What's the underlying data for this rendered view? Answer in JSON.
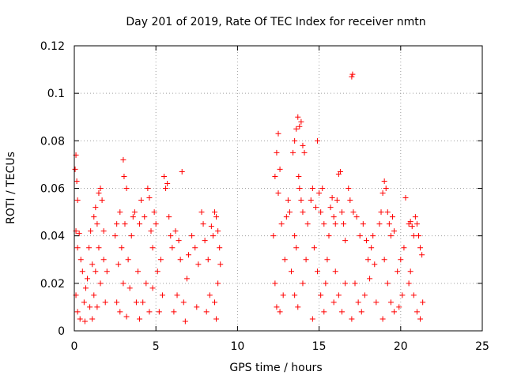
{
  "chart_data": {
    "type": "scatter",
    "title": "Day 201 of 2019, Rate Of TEC Index for receiver nmtn",
    "xlabel": "GPS time / hours",
    "ylabel": "ROTI / TECUs",
    "xlim": [
      0,
      25
    ],
    "ylim": [
      0,
      0.12
    ],
    "x_ticks": [
      0,
      5,
      10,
      15,
      20,
      25
    ],
    "x_tick_labels": [
      "0",
      "5",
      "10",
      "15",
      "20",
      "25"
    ],
    "y_ticks": [
      0,
      0.02,
      0.04,
      0.06,
      0.08,
      0.1,
      0.12
    ],
    "y_tick_labels": [
      "0",
      "0.02",
      "0.04",
      "0.06",
      "0.08",
      "0.1",
      "0.12"
    ],
    "grid": true,
    "marker": "plus",
    "color": "#ff0000",
    "series": [
      {
        "points": [
          [
            0.05,
            0.068
          ],
          [
            0.1,
            0.074
          ],
          [
            0.15,
            0.063
          ],
          [
            0.2,
            0.055
          ],
          [
            0.1,
            0.042
          ],
          [
            0.3,
            0.041
          ],
          [
            0.2,
            0.035
          ],
          [
            0.4,
            0.03
          ],
          [
            0.5,
            0.025
          ],
          [
            0.1,
            0.015
          ],
          [
            0.2,
            0.008
          ],
          [
            0.35,
            0.005
          ],
          [
            0.6,
            0.012
          ],
          [
            0.7,
            0.018
          ],
          [
            0.8,
            0.022
          ],
          [
            0.9,
            0.035
          ],
          [
            1.0,
            0.042
          ],
          [
            1.1,
            0.028
          ],
          [
            0.95,
            0.01
          ],
          [
            0.65,
            0.004
          ],
          [
            1.2,
            0.048
          ],
          [
            1.3,
            0.052
          ],
          [
            1.4,
            0.045
          ],
          [
            1.5,
            0.058
          ],
          [
            1.6,
            0.06
          ],
          [
            1.7,
            0.055
          ],
          [
            1.8,
            0.042
          ],
          [
            1.5,
            0.035
          ],
          [
            1.3,
            0.025
          ],
          [
            1.2,
            0.015
          ],
          [
            1.4,
            0.01
          ],
          [
            1.6,
            0.02
          ],
          [
            1.8,
            0.03
          ],
          [
            2.0,
            0.025
          ],
          [
            1.9,
            0.012
          ],
          [
            1.1,
            0.005
          ],
          [
            2.5,
            0.04
          ],
          [
            2.6,
            0.045
          ],
          [
            2.8,
            0.05
          ],
          [
            3.0,
            0.072
          ],
          [
            3.05,
            0.065
          ],
          [
            3.2,
            0.06
          ],
          [
            3.1,
            0.045
          ],
          [
            2.9,
            0.035
          ],
          [
            2.7,
            0.028
          ],
          [
            2.6,
            0.012
          ],
          [
            2.8,
            0.008
          ],
          [
            3.0,
            0.02
          ],
          [
            3.3,
            0.03
          ],
          [
            3.5,
            0.04
          ],
          [
            3.6,
            0.048
          ],
          [
            3.7,
            0.05
          ],
          [
            3.4,
            0.018
          ],
          [
            3.2,
            0.006
          ],
          [
            3.8,
            0.012
          ],
          [
            3.9,
            0.025
          ],
          [
            4.0,
            0.045
          ],
          [
            4.1,
            0.055
          ],
          [
            4.3,
            0.048
          ],
          [
            4.5,
            0.06
          ],
          [
            4.6,
            0.056
          ],
          [
            4.7,
            0.042
          ],
          [
            4.8,
            0.035
          ],
          [
            4.9,
            0.05
          ],
          [
            5.0,
            0.045
          ],
          [
            4.4,
            0.02
          ],
          [
            4.2,
            0.012
          ],
          [
            4.6,
            0.008
          ],
          [
            4.8,
            0.018
          ],
          [
            5.1,
            0.025
          ],
          [
            5.3,
            0.03
          ],
          [
            5.2,
            0.008
          ],
          [
            4.0,
            0.005
          ],
          [
            5.4,
            0.015
          ],
          [
            5.5,
            0.065
          ],
          [
            5.6,
            0.06
          ],
          [
            5.7,
            0.062
          ],
          [
            5.8,
            0.048
          ],
          [
            5.9,
            0.04
          ],
          [
            6.0,
            0.035
          ],
          [
            6.2,
            0.042
          ],
          [
            6.4,
            0.038
          ],
          [
            6.6,
            0.067
          ],
          [
            6.5,
            0.03
          ],
          [
            6.3,
            0.015
          ],
          [
            6.1,
            0.008
          ],
          [
            6.7,
            0.012
          ],
          [
            6.9,
            0.022
          ],
          [
            7.0,
            0.032
          ],
          [
            7.2,
            0.04
          ],
          [
            7.4,
            0.035
          ],
          [
            7.6,
            0.028
          ],
          [
            7.5,
            0.01
          ],
          [
            6.8,
            0.004
          ],
          [
            7.8,
            0.05
          ],
          [
            7.9,
            0.045
          ],
          [
            8.0,
            0.038
          ],
          [
            8.2,
            0.03
          ],
          [
            8.4,
            0.044
          ],
          [
            8.5,
            0.04
          ],
          [
            8.6,
            0.05
          ],
          [
            8.7,
            0.048
          ],
          [
            8.8,
            0.042
          ],
          [
            8.9,
            0.035
          ],
          [
            8.3,
            0.015
          ],
          [
            8.1,
            0.008
          ],
          [
            8.6,
            0.012
          ],
          [
            8.8,
            0.02
          ],
          [
            8.95,
            0.028
          ],
          [
            8.7,
            0.005
          ],
          [
            12.2,
            0.04
          ],
          [
            12.3,
            0.065
          ],
          [
            12.4,
            0.075
          ],
          [
            12.5,
            0.083
          ],
          [
            12.6,
            0.068
          ],
          [
            12.5,
            0.058
          ],
          [
            12.7,
            0.045
          ],
          [
            12.3,
            0.02
          ],
          [
            12.4,
            0.01
          ],
          [
            12.6,
            0.008
          ],
          [
            12.8,
            0.015
          ],
          [
            12.9,
            0.03
          ],
          [
            13.0,
            0.048
          ],
          [
            13.1,
            0.055
          ],
          [
            13.2,
            0.05
          ],
          [
            13.4,
            0.075
          ],
          [
            13.5,
            0.08
          ],
          [
            13.6,
            0.085
          ],
          [
            13.7,
            0.09
          ],
          [
            13.8,
            0.086
          ],
          [
            13.9,
            0.088
          ],
          [
            14.0,
            0.078
          ],
          [
            14.1,
            0.075
          ],
          [
            13.75,
            0.065
          ],
          [
            13.8,
            0.06
          ],
          [
            13.9,
            0.055
          ],
          [
            14.0,
            0.05
          ],
          [
            13.5,
            0.04
          ],
          [
            13.6,
            0.035
          ],
          [
            13.3,
            0.025
          ],
          [
            13.5,
            0.015
          ],
          [
            13.7,
            0.01
          ],
          [
            14.0,
            0.02
          ],
          [
            14.2,
            0.03
          ],
          [
            14.3,
            0.045
          ],
          [
            14.5,
            0.055
          ],
          [
            14.6,
            0.06
          ],
          [
            14.8,
            0.052
          ],
          [
            14.9,
            0.08
          ],
          [
            15.0,
            0.058
          ],
          [
            15.1,
            0.05
          ],
          [
            15.2,
            0.06
          ],
          [
            15.3,
            0.045
          ],
          [
            14.7,
            0.035
          ],
          [
            14.9,
            0.025
          ],
          [
            15.1,
            0.015
          ],
          [
            15.3,
            0.008
          ],
          [
            14.6,
            0.005
          ],
          [
            15.4,
            0.02
          ],
          [
            15.5,
            0.03
          ],
          [
            15.6,
            0.04
          ],
          [
            15.7,
            0.052
          ],
          [
            15.8,
            0.056
          ],
          [
            15.9,
            0.048
          ],
          [
            16.0,
            0.045
          ],
          [
            16.1,
            0.055
          ],
          [
            16.2,
            0.066
          ],
          [
            16.3,
            0.067
          ],
          [
            16.4,
            0.05
          ],
          [
            16.5,
            0.045
          ],
          [
            16.6,
            0.038
          ],
          [
            16.0,
            0.025
          ],
          [
            16.2,
            0.015
          ],
          [
            16.4,
            0.008
          ],
          [
            16.6,
            0.02
          ],
          [
            15.9,
            0.012
          ],
          [
            16.8,
            0.06
          ],
          [
            16.9,
            0.055
          ],
          [
            17.0,
            0.107
          ],
          [
            17.05,
            0.108
          ],
          [
            17.1,
            0.05
          ],
          [
            17.3,
            0.048
          ],
          [
            17.5,
            0.04
          ],
          [
            17.7,
            0.045
          ],
          [
            17.9,
            0.038
          ],
          [
            18.0,
            0.03
          ],
          [
            17.2,
            0.02
          ],
          [
            17.4,
            0.012
          ],
          [
            17.6,
            0.008
          ],
          [
            17.8,
            0.015
          ],
          [
            18.1,
            0.022
          ],
          [
            18.2,
            0.035
          ],
          [
            18.3,
            0.04
          ],
          [
            18.4,
            0.028
          ],
          [
            18.5,
            0.012
          ],
          [
            17.0,
            0.005
          ],
          [
            18.7,
            0.045
          ],
          [
            18.8,
            0.05
          ],
          [
            18.9,
            0.058
          ],
          [
            19.0,
            0.063
          ],
          [
            19.1,
            0.06
          ],
          [
            19.2,
            0.05
          ],
          [
            19.3,
            0.045
          ],
          [
            19.4,
            0.04
          ],
          [
            19.5,
            0.048
          ],
          [
            19.6,
            0.042
          ],
          [
            19.0,
            0.03
          ],
          [
            19.2,
            0.02
          ],
          [
            19.4,
            0.012
          ],
          [
            19.6,
            0.008
          ],
          [
            18.9,
            0.005
          ],
          [
            19.8,
            0.025
          ],
          [
            20.0,
            0.03
          ],
          [
            20.2,
            0.035
          ],
          [
            20.1,
            0.015
          ],
          [
            19.9,
            0.01
          ],
          [
            20.3,
            0.056
          ],
          [
            20.5,
            0.045
          ],
          [
            20.6,
            0.046
          ],
          [
            20.7,
            0.044
          ],
          [
            20.8,
            0.04
          ],
          [
            20.9,
            0.048
          ],
          [
            21.0,
            0.045
          ],
          [
            21.1,
            0.04
          ],
          [
            21.2,
            0.035
          ],
          [
            21.3,
            0.032
          ],
          [
            20.6,
            0.025
          ],
          [
            20.8,
            0.015
          ],
          [
            21.0,
            0.008
          ],
          [
            21.2,
            0.005
          ],
          [
            21.35,
            0.012
          ],
          [
            20.5,
            0.02
          ]
        ]
      }
    ]
  }
}
